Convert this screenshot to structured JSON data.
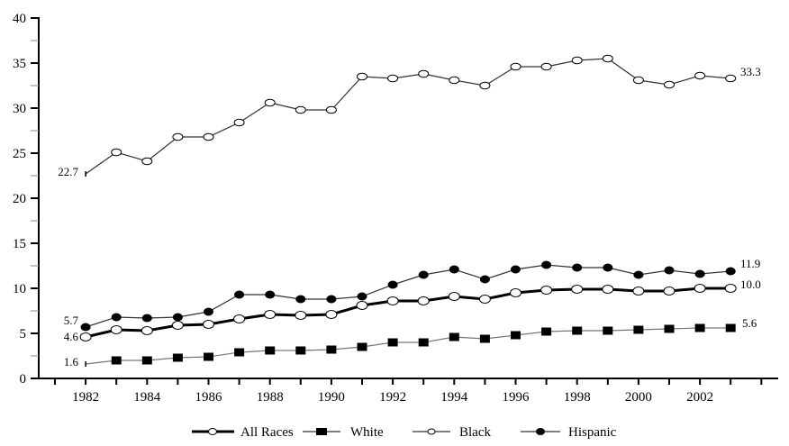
{
  "chart_data": {
    "type": "line",
    "title": "",
    "xlabel": "",
    "ylabel": "",
    "ylim": [
      0,
      40
    ],
    "xlim": [
      1981,
      2004
    ],
    "grid": false,
    "legend_position": "bottom",
    "y_ticks": [
      0,
      5,
      10,
      15,
      20,
      25,
      30,
      35,
      40
    ],
    "x_tick_labels": [
      1982,
      1984,
      1986,
      1988,
      1990,
      1992,
      1994,
      1996,
      1998,
      2000,
      2002
    ],
    "x": [
      1982,
      1983,
      1984,
      1985,
      1986,
      1987,
      1988,
      1989,
      1990,
      1991,
      1992,
      1993,
      1994,
      1995,
      1996,
      1997,
      1998,
      1999,
      2000,
      2001,
      2002,
      2003
    ],
    "series": [
      {
        "name": "All Races",
        "marker": "open-circle",
        "line": "thick",
        "values": [
          4.6,
          5.4,
          5.3,
          5.9,
          6.0,
          6.6,
          7.1,
          7.0,
          7.1,
          8.1,
          8.6,
          8.6,
          9.1,
          8.8,
          9.5,
          9.8,
          9.9,
          9.9,
          9.7,
          9.7,
          10.0,
          10.0
        ],
        "start_label": "4.6",
        "end_label": "10.0"
      },
      {
        "name": "White",
        "marker": "filled-square",
        "line": "thin",
        "values": [
          1.6,
          2.0,
          2.0,
          2.3,
          2.4,
          2.9,
          3.1,
          3.1,
          3.2,
          3.5,
          4.0,
          4.0,
          4.6,
          4.4,
          4.8,
          5.2,
          5.3,
          5.3,
          5.4,
          5.5,
          5.6,
          5.6
        ],
        "start_label": "1.6",
        "end_label": "5.6"
      },
      {
        "name": "Black",
        "marker": "open-circle",
        "line": "thin",
        "values": [
          22.7,
          25.1,
          24.1,
          26.8,
          26.8,
          28.4,
          30.6,
          29.8,
          29.8,
          33.5,
          33.3,
          33.8,
          33.1,
          32.5,
          34.6,
          34.6,
          35.3,
          35.5,
          33.1,
          32.6,
          33.6,
          33.3
        ],
        "start_label": "22.7",
        "end_label": "33.3"
      },
      {
        "name": "Hispanic",
        "marker": "filled-circle",
        "line": "thin",
        "values": [
          5.7,
          6.8,
          6.7,
          6.8,
          7.4,
          9.3,
          9.3,
          8.8,
          8.8,
          9.1,
          10.4,
          11.5,
          12.1,
          11.0,
          12.1,
          12.6,
          12.3,
          12.3,
          11.5,
          12.0,
          11.6,
          11.9
        ],
        "start_label": "5.7",
        "end_label": "11.9"
      }
    ]
  },
  "legend": {
    "items": [
      {
        "label": "All Races"
      },
      {
        "label": "White"
      },
      {
        "label": "Black"
      },
      {
        "label": "Hispanic"
      }
    ]
  }
}
